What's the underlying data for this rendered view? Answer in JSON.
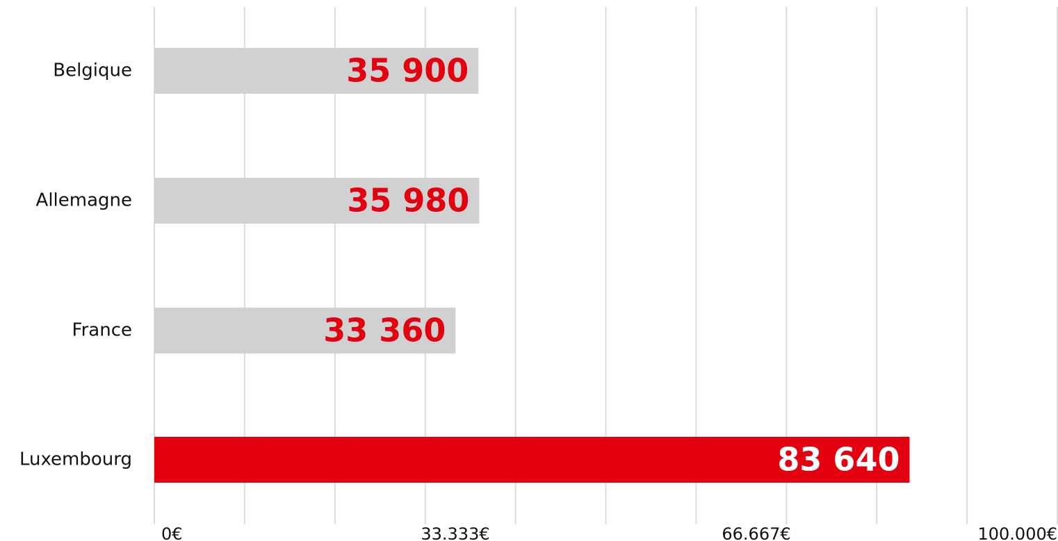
{
  "chart_data": {
    "type": "bar",
    "orientation": "horizontal",
    "categories": [
      "Belgique",
      "Allemagne",
      "France",
      "Luxembourg"
    ],
    "values": [
      35900,
      35980,
      33360,
      83640
    ],
    "value_labels": [
      "35 900",
      "35 980",
      "33 360",
      "83 640"
    ],
    "colors": [
      "#d0d1d0",
      "#d0d1d0",
      "#d0d1d0",
      "#e3000f"
    ],
    "label_colors": [
      "#e3000f",
      "#e3000f",
      "#e3000f",
      "#ffffff"
    ],
    "xlim": [
      0,
      100000
    ],
    "xticks": [
      {
        "value": 0,
        "label": "0€"
      },
      {
        "value": 33333,
        "label": "33.333€"
      },
      {
        "value": 66667,
        "label": "66.667€"
      },
      {
        "value": 100000,
        "label": "100.000€"
      }
    ],
    "minor_xticks": [
      0,
      10000,
      20000,
      30000,
      40000,
      50000,
      60000,
      70000,
      80000,
      90000,
      100000
    ],
    "grid": true
  }
}
